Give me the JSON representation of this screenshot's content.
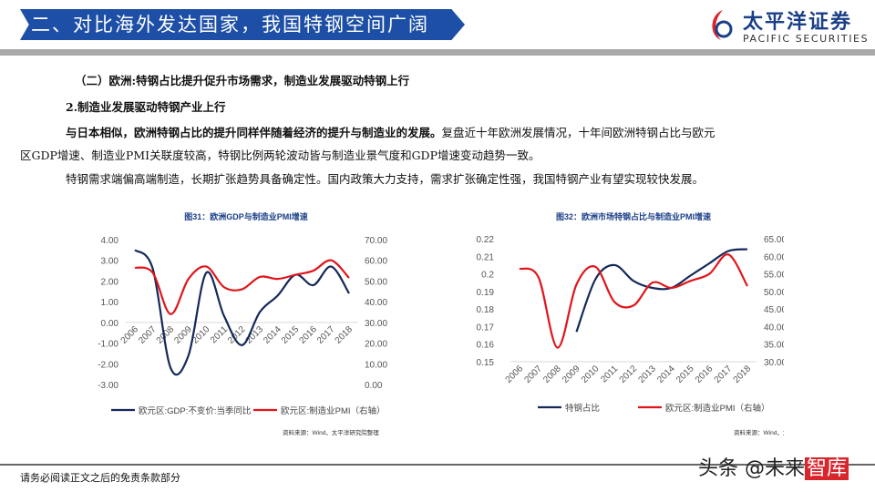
{
  "header": {
    "title": "二、对比海外发达国家，我国特钢空间广阔",
    "logo_cn": "太平洋证券",
    "logo_en": "PACIFIC SECURITIES"
  },
  "body": {
    "section": "（二）欧洲:特钢占比提升促升市场需求，制造业发展驱动特钢上行",
    "subsection": "2.制造业发展驱动特钢产业上行",
    "p1_bold": "与日本相似，欧洲特钢占比的提升同样伴随着经济的提升与制造业的发展。",
    "p1_rest": "复盘近十年欧洲发展情况，十年间欧洲特钢占比与欧元",
    "p1_line2": "区GDP增速、制造业PMI关联度较高，特钢比例两轮波动皆与制造业景气度和GDP增速变动趋势一致。",
    "p2": "特钢需求端偏高端制造，长期扩张趋势具备确定性。国内政策大力支持，需求扩张确定性强，我国特钢产业有望实现较快发展。"
  },
  "footer": {
    "disclaimer": "请务必阅读正文之后的免责条款部分",
    "watermark_a": "头条 @未来",
    "watermark_b": "智库"
  },
  "chart_data": [
    {
      "type": "line",
      "title": "图31：欧洲GDP与制造业PMI增速",
      "source": "资料来源：Wind，太平洋研究院整理",
      "categories": [
        "2006",
        "2007",
        "2008",
        "2009",
        "2010",
        "2011",
        "2012",
        "2013",
        "2014",
        "2015",
        "2016",
        "2017",
        "2018"
      ],
      "ylim": [
        -3,
        4
      ],
      "yticks": [
        "4.00",
        "3.00",
        "2.00",
        "1.00",
        "0.00",
        "-1.00",
        "-2.00",
        "-3.00"
      ],
      "y2lim": [
        0,
        70
      ],
      "y2ticks": [
        "70.00",
        "60.00",
        "50.00",
        "40.00",
        "30.00",
        "20.00",
        "10.00",
        "0.00"
      ],
      "series": [
        {
          "name": "欧元区:GDP:不变价:当季同比",
          "axis": "left",
          "color": "#14285a",
          "values": [
            3.5,
            2.6,
            -2.2,
            -1.6,
            2.4,
            0.3,
            -1.1,
            0.5,
            1.3,
            2.3,
            1.8,
            2.7,
            1.4
          ]
        },
        {
          "name": "欧元区:制造业PMI（右轴）",
          "axis": "right",
          "color": "#e0151b",
          "values": [
            56.5,
            54,
            34,
            51,
            57,
            47,
            46,
            52,
            51,
            53,
            55,
            60,
            51.5
          ]
        }
      ]
    },
    {
      "type": "line",
      "title": "图32：欧洲市场特钢占比与制造业PMI增速",
      "source": "资料来源：Wind，太平洋研究院整理",
      "categories": [
        "2006",
        "2007",
        "2008",
        "2009",
        "2010",
        "2011",
        "2012",
        "2013",
        "2014",
        "2015",
        "2016",
        "2017",
        "2018"
      ],
      "ylim": [
        0.15,
        0.22
      ],
      "yticks": [
        "0.22",
        "0.21",
        "0.2",
        "0.19",
        "0.18",
        "0.17",
        "0.16",
        "0.15"
      ],
      "y2lim": [
        30,
        65
      ],
      "y2ticks": [
        "65.00",
        "60.00",
        "55.00",
        "50.00",
        "45.00",
        "40.00",
        "35.00",
        "30.00"
      ],
      "series": [
        {
          "name": "特钢占比",
          "axis": "left",
          "color": "#14285a",
          "values": [
            null,
            null,
            null,
            0.167,
            0.197,
            0.205,
            0.196,
            0.192,
            0.192,
            0.199,
            0.206,
            0.213,
            0.214
          ]
        },
        {
          "name": "欧元区:制造业PMI（右轴）",
          "axis": "right",
          "color": "#e0151b",
          "values": [
            56.5,
            54,
            34,
            52,
            57,
            47,
            46,
            52.5,
            51,
            53,
            55,
            60.5,
            51.5
          ]
        }
      ]
    }
  ]
}
